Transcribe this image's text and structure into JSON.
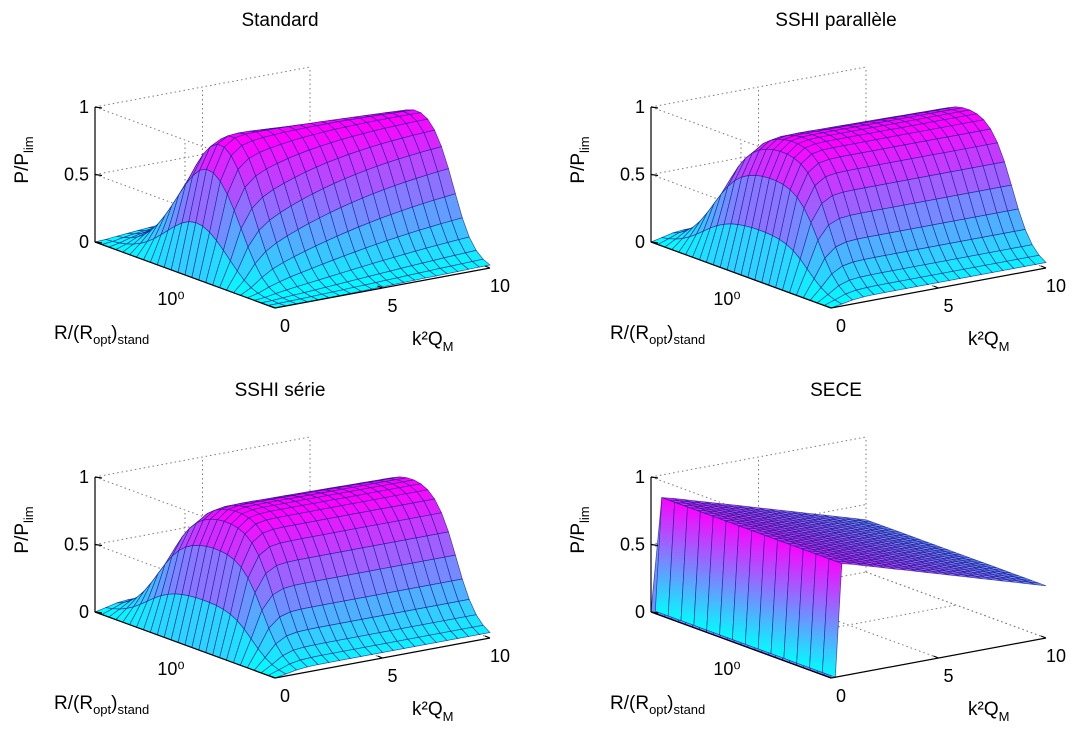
{
  "chart_data": [
    {
      "type": "surface",
      "title": "Standard",
      "xlabel": "k²Q_M",
      "ylabel": "R/(R_opt)_stand",
      "zlabel": "P/P_lim",
      "x_ticks": [
        "0",
        "5",
        "10"
      ],
      "y_ticks": [
        "10⁰"
      ],
      "z_ticks": [
        "0",
        "0.5",
        "1"
      ],
      "xlim": [
        0,
        10
      ],
      "ylim_log10": [
        -2,
        2
      ],
      "zlim": [
        0,
        1
      ],
      "shape": "standard",
      "grid": true,
      "colormap": [
        "#00ffff",
        "#ff00ff"
      ]
    },
    {
      "type": "surface",
      "title": "SSHI parallèle",
      "xlabel": "k²Q_M",
      "ylabel": "R/(R_opt)_stand",
      "zlabel": "P/P_lim",
      "x_ticks": [
        "0",
        "5",
        "10"
      ],
      "y_ticks": [
        "10⁰"
      ],
      "z_ticks": [
        "0",
        "0.5",
        "1"
      ],
      "xlim": [
        0,
        10
      ],
      "ylim_log10": [
        -2,
        2
      ],
      "zlim": [
        0,
        1
      ],
      "shape": "sshi",
      "grid": true,
      "colormap": [
        "#00ffff",
        "#ff00ff"
      ]
    },
    {
      "type": "surface",
      "title": "SSHI série",
      "xlabel": "k²Q_M",
      "ylabel": "R/(R_opt)_stand",
      "zlabel": "P/P_lim",
      "x_ticks": [
        "0",
        "5",
        "10"
      ],
      "y_ticks": [
        "10⁰"
      ],
      "z_ticks": [
        "0",
        "0.5",
        "1"
      ],
      "xlim": [
        0,
        10
      ],
      "ylim_log10": [
        -2,
        2
      ],
      "zlim": [
        0,
        1
      ],
      "shape": "sshi",
      "grid": true,
      "colormap": [
        "#00ffff",
        "#ff00ff"
      ]
    },
    {
      "type": "surface",
      "title": "SECE",
      "xlabel": "k²Q_M",
      "ylabel": "R/(R_opt)_stand",
      "zlabel": "P/P_lim",
      "x_ticks": [
        "0",
        "5",
        "10"
      ],
      "y_ticks": [
        "10⁰"
      ],
      "z_ticks": [
        "0",
        "0.5",
        "1"
      ],
      "xlim": [
        0,
        10
      ],
      "ylim_log10": [
        -2,
        2
      ],
      "zlim": [
        0,
        1
      ],
      "shape": "sece",
      "grid": true,
      "colormap": [
        "#00ffff",
        "#ff00ff"
      ]
    }
  ]
}
